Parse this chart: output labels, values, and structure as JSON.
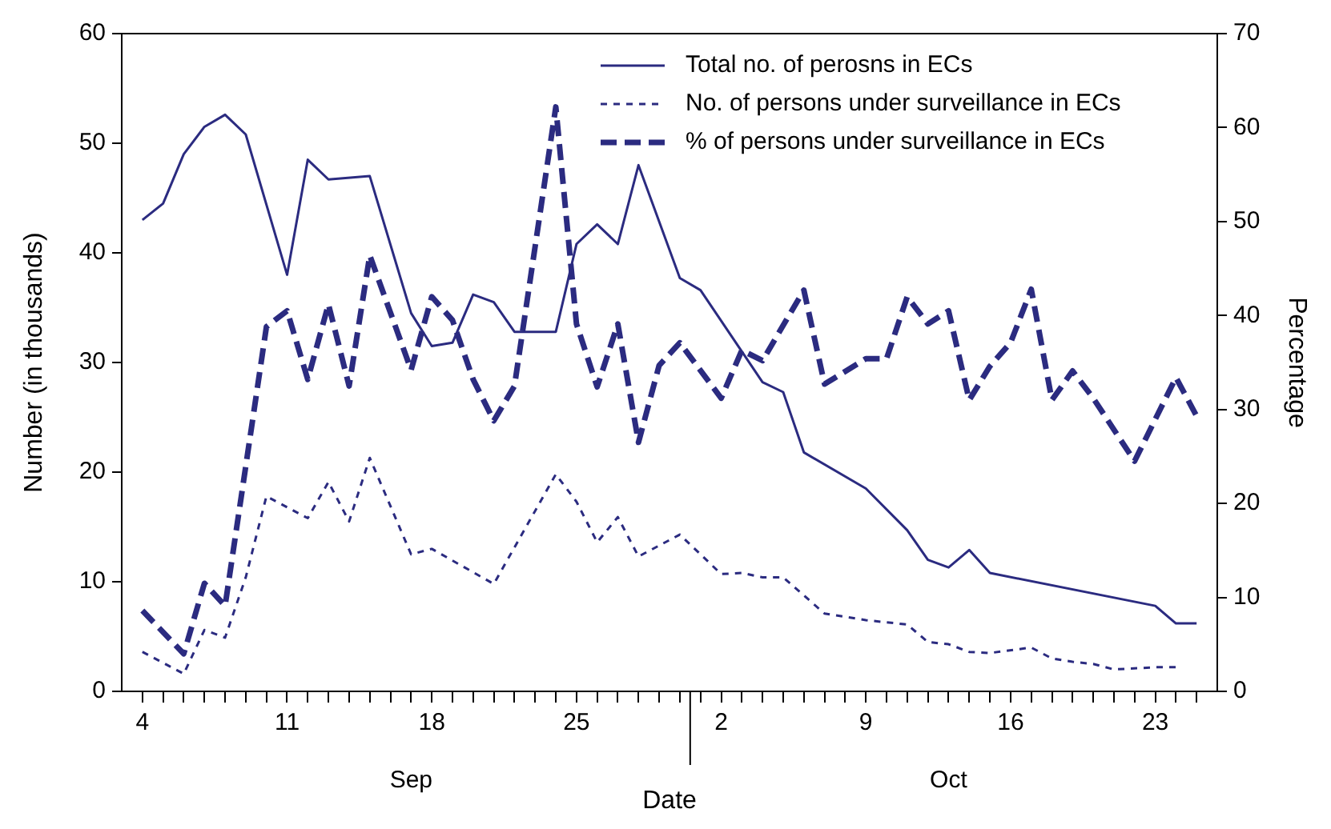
{
  "chart_data": {
    "type": "line",
    "xlabel": "Date",
    "ylabel": "Number (in thousands)",
    "y2label": "Percentage",
    "xlim": [
      "--09-03",
      "--10-26"
    ],
    "xticks": [
      {
        "value": "--09-04",
        "label": "4"
      },
      {
        "value": "--09-05",
        "label": null
      },
      {
        "value": "--09-06",
        "label": null
      },
      {
        "value": "--09-07",
        "label": null
      },
      {
        "value": "--09-08",
        "label": null
      },
      {
        "value": "--09-09",
        "label": null
      },
      {
        "value": "--09-10",
        "label": null
      },
      {
        "value": "--09-11",
        "label": "11"
      },
      {
        "value": "--09-12",
        "label": null
      },
      {
        "value": "--09-13",
        "label": null
      },
      {
        "value": "--09-14",
        "label": null
      },
      {
        "value": "--09-15",
        "label": null
      },
      {
        "value": "--09-16",
        "label": null
      },
      {
        "value": "--09-17",
        "label": null
      },
      {
        "value": "--09-18",
        "label": "18"
      },
      {
        "value": "--09-19",
        "label": null
      },
      {
        "value": "--09-20",
        "label": null
      },
      {
        "value": "--09-21",
        "label": null
      },
      {
        "value": "--09-22",
        "label": null
      },
      {
        "value": "--09-23",
        "label": null
      },
      {
        "value": "--09-24",
        "label": null
      },
      {
        "value": "--09-25",
        "label": "25"
      },
      {
        "value": "--09-26",
        "label": null
      },
      {
        "value": "--09-27",
        "label": null
      },
      {
        "value": "--09-28",
        "label": null
      },
      {
        "value": "--09-29",
        "label": null
      },
      {
        "value": "--09-30",
        "label": null
      },
      {
        "value": "--10-01",
        "label": null
      },
      {
        "value": "--10-02",
        "label": "2"
      },
      {
        "value": "--10-03",
        "label": null
      },
      {
        "value": "--10-04",
        "label": null
      },
      {
        "value": "--10-05",
        "label": null
      },
      {
        "value": "--10-06",
        "label": null
      },
      {
        "value": "--10-07",
        "label": null
      },
      {
        "value": "--10-08",
        "label": null
      },
      {
        "value": "--10-09",
        "label": "9"
      },
      {
        "value": "--10-10",
        "label": null
      },
      {
        "value": "--10-11",
        "label": null
      },
      {
        "value": "--10-12",
        "label": null
      },
      {
        "value": "--10-13",
        "label": null
      },
      {
        "value": "--10-14",
        "label": null
      },
      {
        "value": "--10-15",
        "label": null
      },
      {
        "value": "--10-16",
        "label": "16"
      },
      {
        "value": "--10-17",
        "label": null
      },
      {
        "value": "--10-18",
        "label": null
      },
      {
        "value": "--10-19",
        "label": null
      },
      {
        "value": "--10-20",
        "label": null
      },
      {
        "value": "--10-21",
        "label": null
      },
      {
        "value": "--10-22",
        "label": null
      },
      {
        "value": "--10-23",
        "label": "23"
      },
      {
        "value": "--10-24",
        "label": null
      },
      {
        "value": "--10-25",
        "label": null
      }
    ],
    "ylim": [
      0,
      60
    ],
    "yticks": [
      0,
      10,
      20,
      30,
      40,
      50,
      60
    ],
    "y2lim": [
      0,
      70
    ],
    "y2ticks": [
      0,
      10,
      20,
      30,
      40,
      50,
      60,
      70
    ],
    "grid": false,
    "legend": "top right",
    "marker": "none",
    "annotations": [
      "Sep",
      "Oct"
    ],
    "series": [
      {
        "name": "Total no. of perosns in ECs",
        "color": "#2b2b80",
        "line_style": "solid",
        "x": [
          "--09-04",
          "--09-05",
          "--09-06",
          "--09-07",
          "--09-08",
          "--09-09",
          "--09-11",
          "--09-12",
          "--09-13",
          "--09-15",
          "--09-17",
          "--09-18",
          "--09-19",
          "--09-20",
          "--09-21",
          "--09-22",
          "--09-24",
          "--09-25",
          "--09-26",
          "--09-27",
          "--09-28",
          "--09-30",
          "--10-01",
          "--10-04",
          "--10-05",
          "--10-06",
          "--10-09",
          "--10-11",
          "--10-12",
          "--10-13",
          "--10-14",
          "--10-15",
          "--10-23",
          "--10-24",
          "--10-25"
        ],
        "values": [
          43,
          44.5,
          49,
          51.5,
          52.6,
          50.8,
          38,
          48.5,
          46.7,
          47,
          34.5,
          31.5,
          31.8,
          36.2,
          35.5,
          32.8,
          32.8,
          40.8,
          42.6,
          40.8,
          48,
          37.7,
          36.6,
          28.2,
          27.3,
          21.8,
          18.5,
          14.7,
          12,
          11.3,
          12.9,
          10.8,
          7.8,
          6.2,
          6.2
        ]
      },
      {
        "name": "No. of persons under surveillance in ECs",
        "color": "#2b2b80",
        "line_style": "dashed",
        "x": [
          "--09-04",
          "--09-06",
          "--09-07",
          "--09-08",
          "--09-09",
          "--09-10",
          "--09-12",
          "--09-13",
          "--09-14",
          "--09-15",
          "--09-17",
          "--09-18",
          "--09-21",
          "--09-24",
          "--09-25",
          "--09-26",
          "--09-27",
          "--09-28",
          "--09-30",
          "--10-02",
          "--10-03",
          "--10-04",
          "--10-05",
          "--10-07",
          "--10-09",
          "--10-11",
          "--10-12",
          "--10-13",
          "--10-14",
          "--10-15",
          "--10-17",
          "--10-18",
          "--10-19",
          "--10-20",
          "--10-21",
          "--10-23",
          "--10-24"
        ],
        "values": [
          3.6,
          1.6,
          5.6,
          4.9,
          10.4,
          17.8,
          15.8,
          19.1,
          15.5,
          21.3,
          12.5,
          13,
          9.8,
          19.8,
          17.3,
          13.6,
          15.9,
          12.3,
          14.3,
          10.7,
          10.8,
          10.4,
          10.4,
          7.1,
          6.5,
          6.1,
          4.5,
          4.3,
          3.6,
          3.5,
          4,
          3,
          2.7,
          2.5,
          2,
          2.2,
          2.2
        ]
      },
      {
        "name": "% of persons under surveillance in ECs",
        "color": "#2b2b80",
        "line_style": "dashed",
        "axis": "y2",
        "x": [
          "--09-04",
          "--09-06",
          "--09-07",
          "--09-08",
          "--09-10",
          "--09-11",
          "--09-12",
          "--09-13",
          "--09-14",
          "--09-15",
          "--09-17",
          "--09-18",
          "--09-19",
          "--09-20",
          "--09-21",
          "--09-22",
          "--09-24",
          "--09-25",
          "--09-26",
          "--09-27",
          "--09-28",
          "--09-29",
          "--09-30",
          "--10-02",
          "--10-03",
          "--10-04",
          "--10-06",
          "--10-07",
          "--10-09",
          "--10-10",
          "--10-11",
          "--10-12",
          "--10-13",
          "--10-14",
          "--10-15",
          "--10-16",
          "--10-17",
          "--10-18",
          "--10-19",
          "--10-20",
          "--10-22",
          "--10-24",
          "--10-25"
        ],
        "values": [
          8.6,
          4,
          11.5,
          9.1,
          38.8,
          40.5,
          33.2,
          41.2,
          32.5,
          46.4,
          34.2,
          42,
          39.5,
          33.2,
          28.8,
          32.5,
          62.2,
          39.1,
          32.4,
          39.1,
          26.5,
          34.7,
          37.1,
          31.2,
          36.3,
          35.2,
          42.7,
          32.7,
          35.4,
          35.4,
          42,
          39.1,
          40.5,
          31,
          34.6,
          37.1,
          42.8,
          31,
          34.1,
          31.2,
          24.5,
          33.4,
          29.3
        ]
      }
    ]
  }
}
